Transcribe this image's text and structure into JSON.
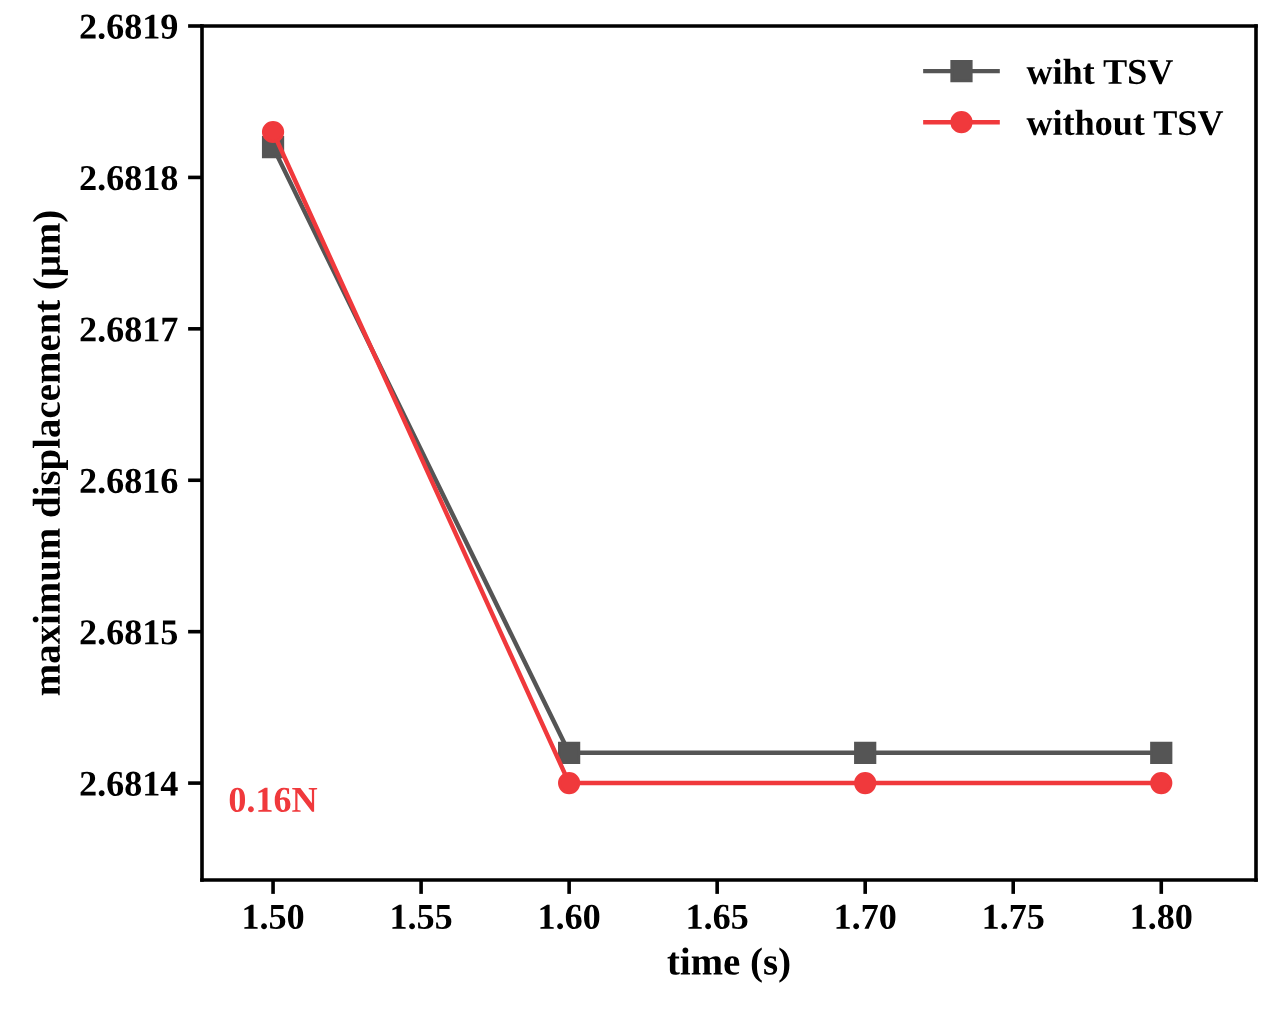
{
  "chart_data": {
    "type": "line",
    "xlabel": "time (s)",
    "ylabel": "maximum displacement (μm)",
    "x": [
      1.5,
      1.6,
      1.7,
      1.8
    ],
    "series": [
      {
        "name": "wiht TSV",
        "color": "#555555",
        "marker": "square",
        "values": [
          2.68182,
          2.68142,
          2.68142,
          2.68142
        ]
      },
      {
        "name": "without TSV",
        "color": "#f0393c",
        "marker": "circle",
        "values": [
          2.68183,
          2.6814,
          2.6814,
          2.6814
        ]
      }
    ],
    "xlim": [
      1.476,
      1.832
    ],
    "xticks": [
      {
        "value": 1.5,
        "label": "1.50"
      },
      {
        "value": 1.55,
        "label": "1.55"
      },
      {
        "value": 1.6,
        "label": "1.60"
      },
      {
        "value": 1.65,
        "label": "1.65"
      },
      {
        "value": 1.7,
        "label": "1.70"
      },
      {
        "value": 1.75,
        "label": "1.75"
      },
      {
        "value": 1.8,
        "label": "1.80"
      }
    ],
    "ylim": [
      2.681336,
      2.6819
    ],
    "yticks": [
      2.6814,
      2.6815,
      2.6816,
      2.6817,
      2.6818,
      2.6819
    ],
    "annotations": [
      "0.16N"
    ],
    "legend": "top right",
    "grid": false,
    "line_style": "solid"
  }
}
